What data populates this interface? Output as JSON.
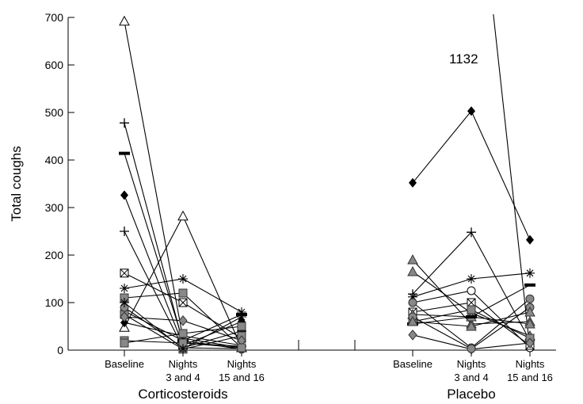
{
  "chart_data": {
    "type": "line",
    "ylabel": "Total coughs",
    "ylim": [
      0,
      700
    ],
    "yticks": [
      0,
      100,
      200,
      300,
      400,
      500,
      600,
      700
    ],
    "groups": [
      {
        "label": "Corticosteroids",
        "timepoints": [
          "Baseline",
          "Nights\n3 and 4",
          "Nights\n15 and 16"
        ]
      },
      {
        "label": "Placebo",
        "timepoints": [
          "Baseline",
          "Nights\n3 and 4",
          "Nights\n15 and 16"
        ]
      }
    ],
    "annotations": [
      {
        "text": "1132"
      }
    ],
    "corticosteroids": [
      {
        "marker": "triangle-open",
        "values": [
          692,
          25,
          5
        ]
      },
      {
        "marker": "triangle-open",
        "values": [
          48,
          282,
          5
        ]
      },
      {
        "marker": "plus",
        "values": [
          478,
          15,
          8
        ]
      },
      {
        "marker": "dash",
        "values": [
          414,
          20,
          75
        ]
      },
      {
        "marker": "diamond-filled",
        "values": [
          326,
          10,
          60
        ]
      },
      {
        "marker": "plus",
        "values": [
          250,
          5,
          40
        ]
      },
      {
        "marker": "square-cross",
        "values": [
          162,
          100,
          25
        ]
      },
      {
        "marker": "star",
        "values": [
          130,
          150,
          80
        ]
      },
      {
        "marker": "square-gray",
        "values": [
          110,
          120,
          5
        ]
      },
      {
        "marker": "circle-gray",
        "values": [
          82,
          20,
          2
        ]
      },
      {
        "marker": "square-gray",
        "values": [
          75,
          2,
          30
        ]
      },
      {
        "marker": "diamond-filled",
        "values": [
          58,
          30,
          10
        ]
      },
      {
        "marker": "diamond-gray",
        "values": [
          70,
          62,
          20
        ]
      },
      {
        "marker": "circle-gray",
        "values": [
          90,
          5,
          3
        ]
      },
      {
        "marker": "square-gray",
        "values": [
          20,
          15,
          5
        ]
      },
      {
        "marker": "square-gray",
        "values": [
          15,
          35,
          50
        ]
      },
      {
        "marker": "star",
        "values": [
          100,
          3,
          70
        ]
      }
    ],
    "placebo": [
      {
        "marker": "none",
        "values": [
          null,
          1132,
          2
        ]
      },
      {
        "marker": "diamond-filled",
        "values": [
          352,
          503,
          232
        ]
      },
      {
        "marker": "triangle-gray",
        "values": [
          190,
          55,
          60
        ]
      },
      {
        "marker": "triangle-gray",
        "values": [
          165,
          78,
          30
        ]
      },
      {
        "marker": "plus",
        "values": [
          118,
          248,
          20
        ]
      },
      {
        "marker": "star",
        "values": [
          112,
          150,
          162
        ]
      },
      {
        "marker": "circle-open",
        "values": [
          100,
          125,
          5
        ]
      },
      {
        "marker": "circle-gray",
        "values": [
          100,
          5,
          108
        ]
      },
      {
        "marker": "square-cross",
        "values": [
          80,
          100,
          10
        ]
      },
      {
        "marker": "triangle-gray",
        "values": [
          75,
          70,
          55
        ]
      },
      {
        "marker": "dash",
        "values": [
          55,
          70,
          137
        ]
      },
      {
        "marker": "square-gray",
        "values": [
          60,
          85,
          25
        ]
      },
      {
        "marker": "diamond-gray",
        "values": [
          32,
          2,
          15
        ]
      },
      {
        "marker": "circle-gray",
        "values": [
          70,
          3,
          90
        ]
      },
      {
        "marker": "triangle-gray",
        "values": [
          60,
          50,
          80
        ]
      }
    ]
  }
}
